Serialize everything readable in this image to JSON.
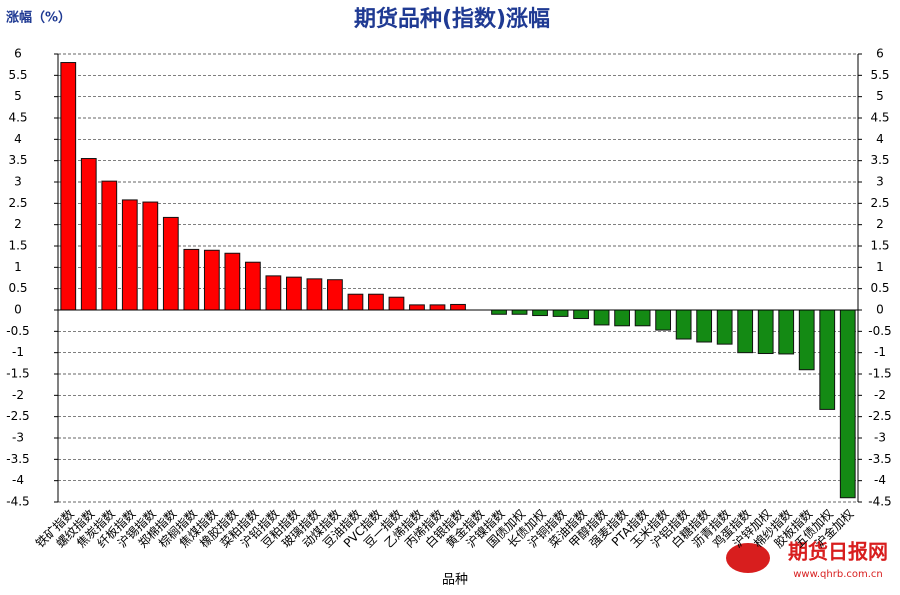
{
  "chart_data": {
    "type": "bar",
    "title": "期货品种(指数)涨幅",
    "y_label": "涨幅（%）",
    "x_label": "品种",
    "categories": [
      "铁矿指数",
      "螺纹指数",
      "焦炭指数",
      "纤板指数",
      "沪锡指数",
      "郑棉指数",
      "棕榈指数",
      "焦煤指数",
      "橡胶指数",
      "菜粕指数",
      "沪铅指数",
      "豆粕指数",
      "玻璃指数",
      "动煤指数",
      "豆油指数",
      "PVC指数",
      "豆一指数",
      "乙烯指数",
      "丙烯指数",
      "白银指数",
      "黄金指数",
      "沪镍指数",
      "国债加权",
      "长债加权",
      "沪铜指数",
      "菜油指数",
      "甲醇指数",
      "强麦指数",
      "PTA指数",
      "玉米指数",
      "沪铝指数",
      "白糖指数",
      "沥青指数",
      "鸡蛋指数",
      "沪锌加权",
      "棉纱指数",
      "胶板指数",
      "五债加权",
      "沪金加权"
    ],
    "values": [
      5.8,
      3.55,
      3.02,
      2.58,
      2.53,
      2.17,
      1.42,
      1.4,
      1.33,
      1.12,
      0.8,
      0.77,
      0.73,
      0.71,
      0.37,
      0.37,
      0.3,
      0.12,
      0.12,
      0.13,
      0,
      -0.1,
      -0.1,
      -0.13,
      -0.15,
      -0.2,
      -0.35,
      -0.37,
      -0.37,
      -0.47,
      -0.68,
      -0.75,
      -0.8,
      -1.0,
      -1.02,
      -1.03,
      -1.4,
      -2.33,
      -4.4
    ],
    "positive_color": "#ff0000",
    "negative_color": "#148a14",
    "ylim": [
      -4.5,
      6
    ],
    "yticks": [
      -4.5,
      -4,
      -3.5,
      -3,
      -2.5,
      -2,
      -1.5,
      -1,
      -0.5,
      0,
      0.5,
      1,
      1.5,
      2,
      2.5,
      3,
      3.5,
      4,
      4.5,
      5,
      5.5,
      6
    ],
    "grid": true
  },
  "watermark": {
    "name": "期货日报网",
    "url": "www.qhrb.com.cn"
  }
}
